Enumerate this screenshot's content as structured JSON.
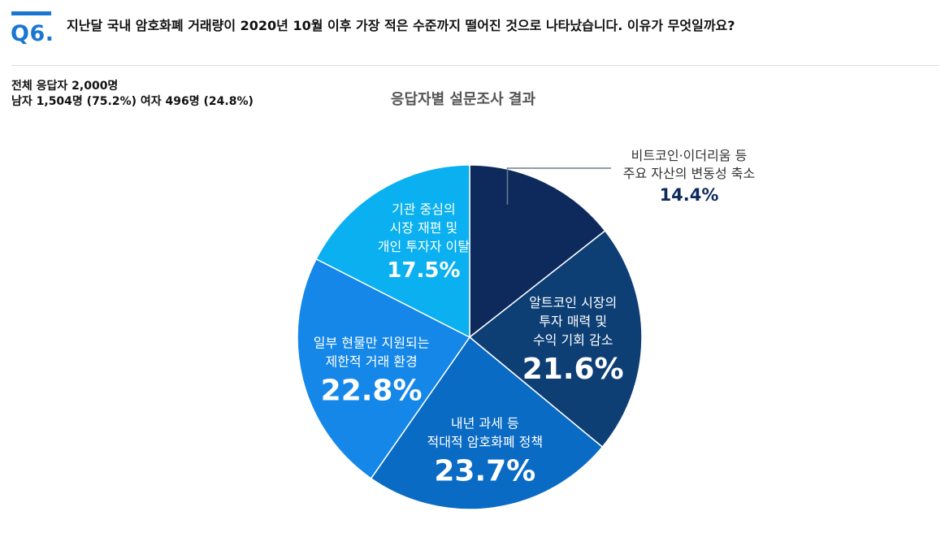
{
  "header": {
    "question_number": "Q6.",
    "question_text": "지난달 국내 암호화폐 거래량이 2020년 10월 이후 가장 적은 수준까지 떨어진 것으로 나타났습니다. 이유가 무엇일까요?",
    "accent_color": "#1976d2"
  },
  "respondents": {
    "total": "전체 응답자 2,000명",
    "breakdown": "남자 1,504명 (75.2%) 여자 496명 (24.8%)"
  },
  "chart_data": {
    "type": "pie",
    "title": "응답자별 설문조사 결과",
    "start_angle_deg": 0,
    "direction": "clockwise",
    "slices": [
      {
        "lines": [
          "비트코인·이더리움 등",
          "주요 자산의 변동성 축소"
        ],
        "value": 14.4,
        "value_label": "14.4%",
        "color": "#0e2a5c",
        "label_position": "outside"
      },
      {
        "lines": [
          "알트코인 시장의",
          "투자 매력 및",
          "수익 기회 감소"
        ],
        "value": 21.6,
        "value_label": "21.6%",
        "color": "#0d3f75",
        "label_position": "inside"
      },
      {
        "lines": [
          "내년 과세 등",
          "적대적 암호화폐 정책"
        ],
        "value": 23.7,
        "value_label": "23.7%",
        "color": "#0a6bc4",
        "label_position": "inside"
      },
      {
        "lines": [
          "일부 현물만 지원되는",
          "제한적 거래 환경"
        ],
        "value": 22.8,
        "value_label": "22.8%",
        "color": "#1487e8",
        "label_position": "inside"
      },
      {
        "lines": [
          "기관 중심의",
          "시장 재편 및",
          "개인 투자자 이탈"
        ],
        "value": 17.5,
        "value_label": "17.5%",
        "color": "#0ab0ef",
        "label_position": "inside"
      }
    ]
  }
}
